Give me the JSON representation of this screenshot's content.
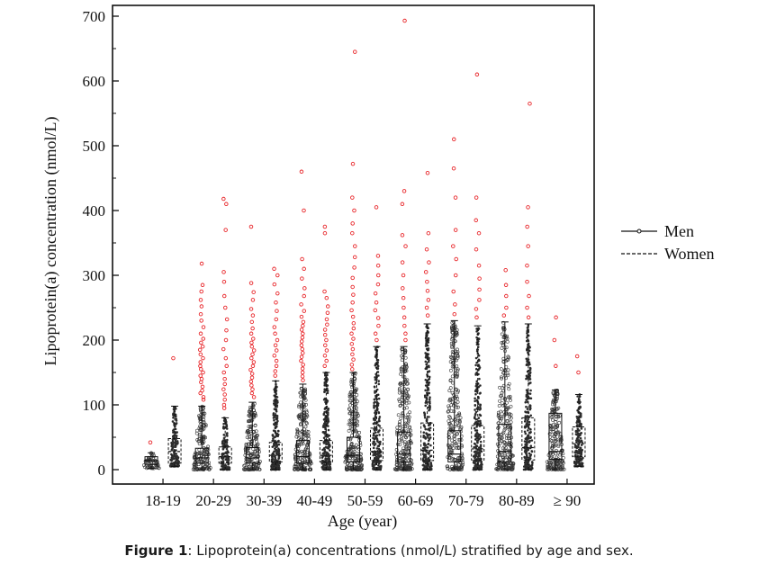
{
  "chart_data": {
    "type": "box",
    "title": "",
    "xlabel": "Age (year)",
    "ylabel": "Lipoprotein(a) concentration (nmol/L)",
    "ylim": [
      0,
      700
    ],
    "yticks": [
      0,
      100,
      200,
      300,
      400,
      500,
      600,
      700
    ],
    "categories": [
      "18-19",
      "20-29",
      "30-39",
      "40-49",
      "50-59",
      "60-69",
      "70-79",
      "80-89",
      "≥ 90"
    ],
    "legend": {
      "position": "right",
      "entries": [
        {
          "label": "Men",
          "style": "solid"
        },
        {
          "label": "Women",
          "style": "dashed"
        }
      ]
    },
    "outlier_color": "#e8262a",
    "series": [
      {
        "name": "Men",
        "boxes": [
          {
            "q1": 8,
            "median": 14,
            "q3": 20,
            "whisker_low": 2,
            "whisker_high": 26
          },
          {
            "q1": 10,
            "median": 18,
            "q3": 33,
            "whisker_low": 0,
            "whisker_high": 98
          },
          {
            "q1": 10,
            "median": 18,
            "q3": 34,
            "whisker_low": 0,
            "whisker_high": 104
          },
          {
            "q1": 10,
            "median": 20,
            "q3": 45,
            "whisker_low": 0,
            "whisker_high": 132
          },
          {
            "q1": 12,
            "median": 22,
            "q3": 50,
            "whisker_low": 0,
            "whisker_high": 150
          },
          {
            "q1": 12,
            "median": 24,
            "q3": 58,
            "whisker_low": 0,
            "whisker_high": 190
          },
          {
            "q1": 12,
            "median": 24,
            "q3": 60,
            "whisker_low": 0,
            "whisker_high": 230
          },
          {
            "q1": 12,
            "median": 28,
            "q3": 70,
            "whisker_low": 0,
            "whisker_high": 228
          },
          {
            "q1": 16,
            "median": 28,
            "q3": 87,
            "whisker_low": 0,
            "whisker_high": 123
          }
        ],
        "outliers": [
          [
            42
          ],
          [
            108,
            112,
            118,
            122,
            128,
            135,
            140,
            145,
            150,
            155,
            160,
            166,
            172,
            178,
            185,
            190,
            196,
            202,
            210,
            220,
            230,
            240,
            252,
            262,
            275,
            285,
            318
          ],
          [
            112,
            118,
            124,
            130,
            136,
            142,
            148,
            154,
            160,
            166,
            172,
            178,
            184,
            190,
            196,
            202,
            210,
            218,
            228,
            238,
            248,
            262,
            274,
            288,
            375
          ],
          [
            138,
            144,
            150,
            156,
            162,
            168,
            174,
            180,
            186,
            192,
            198,
            204,
            210,
            216,
            222,
            228,
            236,
            245,
            255,
            268,
            280,
            295,
            310,
            325,
            400,
            460
          ],
          [
            155,
            162,
            170,
            178,
            186,
            194,
            202,
            210,
            218,
            226,
            236,
            246,
            258,
            270,
            282,
            296,
            312,
            328,
            345,
            365,
            380,
            400,
            420,
            472,
            645
          ],
          [
            200,
            210,
            222,
            235,
            250,
            265,
            280,
            300,
            320,
            345,
            362,
            410,
            430,
            693
          ],
          [
            240,
            255,
            275,
            300,
            325,
            345,
            370,
            420,
            465,
            510
          ],
          [
            238,
            250,
            268,
            285,
            308
          ],
          [
            160,
            200,
            235
          ]
        ]
      },
      {
        "name": "Women",
        "boxes": [
          {
            "q1": 10,
            "median": 28,
            "q3": 48,
            "whisker_low": 5,
            "whisker_high": 98
          },
          {
            "q1": 10,
            "median": 20,
            "q3": 35,
            "whisker_low": 0,
            "whisker_high": 80
          },
          {
            "q1": 12,
            "median": 22,
            "q3": 42,
            "whisker_low": 0,
            "whisker_high": 137
          },
          {
            "q1": 12,
            "median": 22,
            "q3": 45,
            "whisker_low": 0,
            "whisker_high": 150
          },
          {
            "q1": 14,
            "median": 28,
            "q3": 64,
            "whisker_low": 0,
            "whisker_high": 190
          },
          {
            "q1": 14,
            "median": 30,
            "q3": 72,
            "whisker_low": 0,
            "whisker_high": 225
          },
          {
            "q1": 15,
            "median": 32,
            "q3": 68,
            "whisker_low": 0,
            "whisker_high": 222
          },
          {
            "q1": 15,
            "median": 34,
            "q3": 80,
            "whisker_low": 0,
            "whisker_high": 225
          },
          {
            "q1": 20,
            "median": 40,
            "q3": 66,
            "whisker_low": 5,
            "whisker_high": 116
          }
        ],
        "outliers": [
          [
            172
          ],
          [
            95,
            100,
            108,
            116,
            124,
            132,
            140,
            150,
            160,
            172,
            186,
            200,
            215,
            232,
            250,
            268,
            290,
            305,
            370,
            410,
            418
          ],
          [
            145,
            152,
            160,
            168,
            176,
            184,
            192,
            200,
            210,
            220,
            232,
            245,
            258,
            272,
            286,
            300,
            310
          ],
          [
            160,
            168,
            176,
            184,
            192,
            200,
            208,
            216,
            224,
            232,
            242,
            252,
            265,
            275,
            365,
            375
          ],
          [
            200,
            210,
            222,
            234,
            246,
            258,
            272,
            286,
            300,
            315,
            330,
            405
          ],
          [
            238,
            250,
            262,
            276,
            290,
            305,
            320,
            340,
            365,
            458
          ],
          [
            235,
            248,
            262,
            278,
            295,
            315,
            340,
            365,
            385,
            420,
            610
          ],
          [
            235,
            250,
            268,
            290,
            315,
            345,
            375,
            405,
            565
          ],
          [
            150,
            175
          ]
        ]
      }
    ]
  },
  "caption": {
    "label": "Figure 1",
    "text": ": Lipoprotein(a) concentrations (nmol/L) stratified by age and sex."
  }
}
